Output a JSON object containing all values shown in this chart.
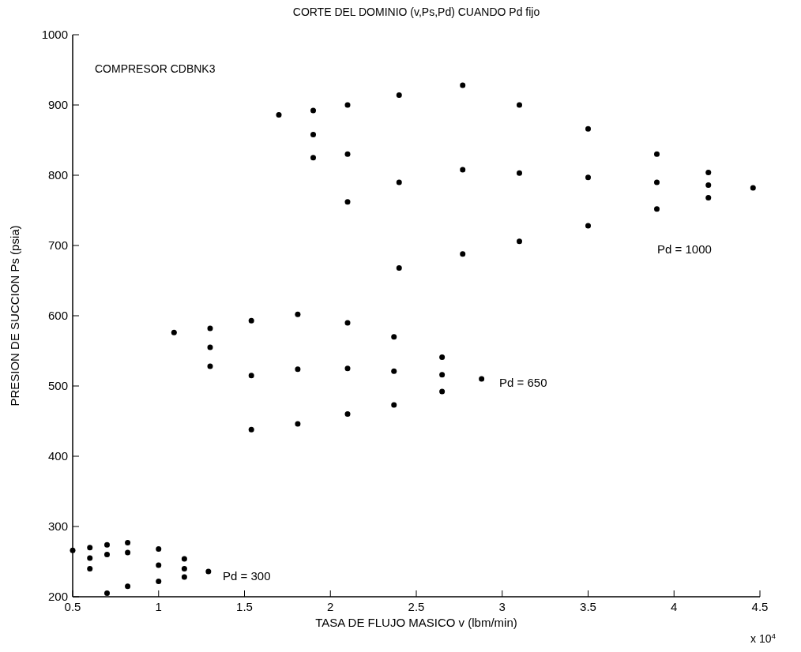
{
  "chart_data": {
    "type": "scatter",
    "title": "CORTE DEL DOMINIO (v,Ps,Pd) CUANDO Pd fijo",
    "xlabel": "TASA DE FLUJO MASICO v (lbm/min)",
    "ylabel": "PRESION DE SUCCION Ps (psia)",
    "xlim": [
      0.5,
      4.5
    ],
    "xticks": [
      0.5,
      1,
      1.5,
      2,
      2.5,
      3,
      3.5,
      4,
      4.5
    ],
    "ylim": [
      200,
      1000
    ],
    "yticks": [
      200,
      300,
      400,
      500,
      600,
      700,
      800,
      900,
      1000
    ],
    "grid": false,
    "marker": "circle",
    "series": [
      {
        "color": "#000000",
        "x": [
          1.7,
          1.9,
          1.9,
          1.9,
          2.1,
          2.1,
          2.1,
          2.4,
          2.4,
          2.4,
          2.77,
          2.77,
          2.77,
          3.1,
          3.1,
          3.1,
          3.5,
          3.5,
          3.5,
          3.9,
          3.9,
          3.9,
          4.2,
          4.2,
          4.2,
          4.46
        ],
        "values": [
          886,
          892,
          858,
          825,
          900,
          830,
          762,
          914,
          790,
          668,
          928,
          808,
          688,
          900,
          803,
          706,
          866,
          797,
          728,
          830,
          790,
          752,
          804,
          786,
          768,
          782
        ]
      },
      {
        "color": "#000000",
        "x": [
          1.09,
          1.3,
          1.3,
          1.3,
          1.54,
          1.54,
          1.54,
          1.81,
          1.81,
          1.81,
          2.1,
          2.1,
          2.1,
          2.37,
          2.37,
          2.37,
          2.65,
          2.65,
          2.65,
          2.88
        ],
        "values": [
          576,
          582,
          555,
          528,
          593,
          515,
          438,
          602,
          524,
          446,
          590,
          525,
          460,
          570,
          521,
          473,
          541,
          516,
          492,
          510
        ]
      },
      {
        "color": "#000000",
        "x": [
          0.5,
          0.6,
          0.6,
          0.6,
          0.7,
          0.7,
          0.7,
          0.82,
          0.82,
          0.82,
          1.0,
          1.0,
          1.0,
          1.15,
          1.15,
          1.15,
          1.29
        ],
        "values": [
          266,
          270,
          255,
          240,
          274,
          260,
          205,
          277,
          263,
          215,
          268,
          245,
          222,
          254,
          240,
          228,
          236
        ]
      }
    ],
    "annotations": [
      "COMPRESOR CDBNK3",
      "x 10$^{4}$",
      "Pd = 1000",
      "Pd = 650",
      "Pd = 300"
    ]
  }
}
